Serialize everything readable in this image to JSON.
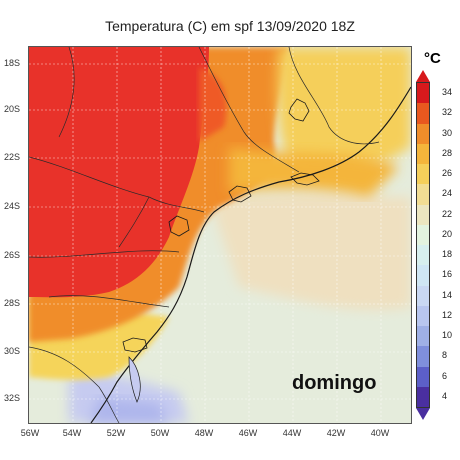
{
  "title": "Temperatura (C) em spf 13/09/2020 18Z",
  "watermark": "domingo",
  "colorbar": {
    "unit": "°C",
    "levels": [
      "4",
      "6",
      "8",
      "10",
      "12",
      "14",
      "16",
      "18",
      "20",
      "22",
      "24",
      "26",
      "28",
      "30",
      "32",
      "34"
    ],
    "colors": [
      "#4a2fa0",
      "#5c5fc8",
      "#7f8fdc",
      "#9fb0e6",
      "#b8c6ef",
      "#c9d8f3",
      "#cfe6f4",
      "#d7efee",
      "#e3f3df",
      "#ece6c0",
      "#f2dd93",
      "#f5cf5a",
      "#f4b53b",
      "#f08d2a",
      "#e9581f",
      "#d7191c"
    ]
  },
  "axes": {
    "lat_labels": [
      "18S",
      "20S",
      "22S",
      "24S",
      "26S",
      "28S",
      "30S",
      "32S"
    ],
    "lon_labels": [
      "56W",
      "54W",
      "52W",
      "50W",
      "48W",
      "46W",
      "44W",
      "42W",
      "40W"
    ]
  },
  "map_colors": {
    "sea": "#dfe9f3",
    "hot": "#e8322a",
    "warm": "#f08d2a",
    "mild": "#f5cf5a",
    "cool": "#e3f3df",
    "cold": "#c6cbf0"
  }
}
